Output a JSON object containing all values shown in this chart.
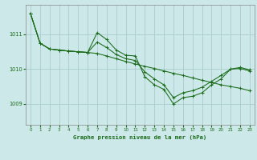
{
  "title": "Graphe pression niveau de la mer (hPa)",
  "bg_color": "#cce8e8",
  "grid_color": "#aacccc",
  "line_color": "#1a6b1a",
  "xlim": [
    -0.5,
    23.5
  ],
  "ylim": [
    1008.4,
    1011.85
  ],
  "yticks": [
    1009,
    1010,
    1011
  ],
  "xticks": [
    0,
    1,
    2,
    3,
    4,
    5,
    6,
    7,
    8,
    9,
    10,
    11,
    12,
    13,
    14,
    15,
    16,
    17,
    18,
    19,
    20,
    21,
    22,
    23
  ],
  "series1_x": [
    0,
    1,
    2,
    3,
    4,
    5,
    6,
    7,
    8,
    9,
    10,
    11,
    12,
    13,
    14,
    15,
    16,
    17,
    18,
    19,
    20,
    21,
    22,
    23
  ],
  "series1_y": [
    1011.6,
    1010.75,
    1010.58,
    1010.55,
    1010.52,
    1010.5,
    1010.48,
    1010.45,
    1010.38,
    1010.3,
    1010.22,
    1010.15,
    1010.08,
    1010.02,
    1009.95,
    1009.88,
    1009.82,
    1009.75,
    1009.68,
    1009.62,
    1009.55,
    1009.5,
    1009.45,
    1009.38
  ],
  "series2_x": [
    0,
    1,
    2,
    3,
    4,
    5,
    6,
    7,
    8,
    9,
    10,
    11,
    12,
    13,
    14,
    15,
    16,
    17,
    18,
    19,
    20,
    21,
    22,
    23
  ],
  "series2_y": [
    1011.6,
    1010.75,
    1010.58,
    1010.55,
    1010.52,
    1010.5,
    1010.48,
    1011.05,
    1010.85,
    1010.55,
    1010.4,
    1010.38,
    1009.78,
    1009.55,
    1009.42,
    1009.0,
    1009.18,
    1009.22,
    1009.32,
    1009.55,
    1009.72,
    1010.0,
    1010.05,
    1009.98
  ],
  "series3_x": [
    0,
    1,
    2,
    3,
    4,
    5,
    6,
    7,
    8,
    9,
    10,
    11,
    12,
    13,
    14,
    15,
    16,
    17,
    18,
    19,
    20,
    21,
    22,
    23
  ],
  "series3_y": [
    1011.6,
    1010.75,
    1010.58,
    1010.55,
    1010.52,
    1010.5,
    1010.48,
    1010.78,
    1010.62,
    1010.42,
    1010.3,
    1010.25,
    1009.92,
    1009.72,
    1009.55,
    1009.18,
    1009.32,
    1009.38,
    1009.48,
    1009.65,
    1009.82,
    1010.0,
    1010.02,
    1009.95
  ]
}
